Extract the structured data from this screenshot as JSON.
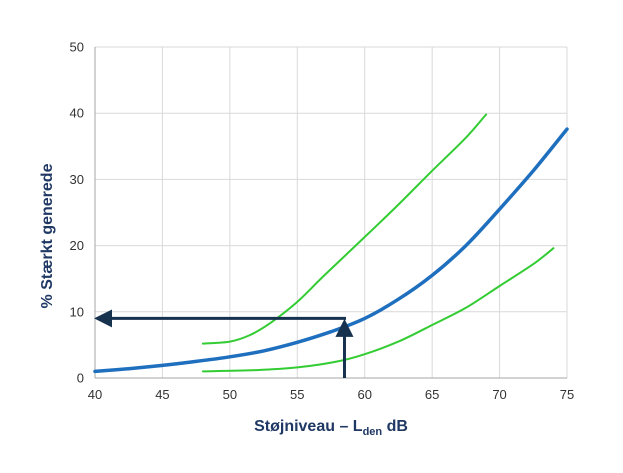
{
  "chart_data": {
    "type": "line",
    "title": "",
    "xlabel": {
      "main": "Støjniveau – L",
      "subscript": "den",
      "unit": " dB"
    },
    "ylabel": "% Stærkt generede",
    "xlim": [
      40,
      75
    ],
    "ylim": [
      0,
      50
    ],
    "xticks": [
      40,
      45,
      50,
      55,
      60,
      65,
      70,
      75
    ],
    "yticks": [
      0,
      10,
      20,
      30,
      40,
      50
    ],
    "grid": true,
    "legend": "none",
    "series": [
      {
        "role": "central",
        "color": "#1f6fbf",
        "x": [
          40,
          42.5,
          45,
          47.5,
          50,
          52.5,
          55,
          57.5,
          60,
          62.5,
          65,
          67.5,
          70,
          72.5,
          75
        ],
        "y": [
          1.0,
          1.4,
          1.9,
          2.5,
          3.2,
          4.1,
          5.4,
          7.0,
          9.0,
          11.9,
          15.5,
          20.0,
          25.5,
          31.3,
          37.6
        ]
      },
      {
        "role": "upper-bound",
        "color": "#33cc33",
        "x": [
          48,
          50,
          51.5,
          53,
          55,
          57,
          60,
          62.5,
          65,
          67.5,
          69
        ],
        "y": [
          5.2,
          5.5,
          6.5,
          8.3,
          11.5,
          15.5,
          21.3,
          26.2,
          31.3,
          36.3,
          39.8
        ]
      },
      {
        "role": "lower-bound",
        "color": "#33cc33",
        "x": [
          48,
          52,
          55,
          58,
          60,
          62.5,
          65,
          67.5,
          70,
          72.5,
          74
        ],
        "y": [
          1.0,
          1.2,
          1.6,
          2.5,
          3.6,
          5.5,
          8.0,
          10.6,
          13.9,
          17.2,
          19.6
        ]
      }
    ],
    "annotation": {
      "color": "#17324f",
      "from_x": 58.5,
      "level_y": 9.0,
      "to_x": 40.2
    }
  }
}
